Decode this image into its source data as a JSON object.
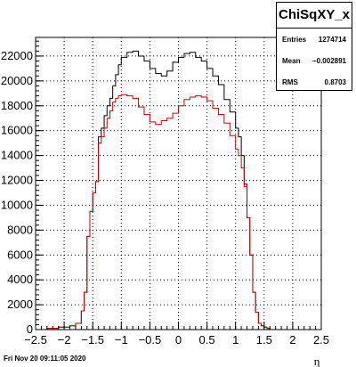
{
  "stats": {
    "title": "ChiSqXY_x",
    "rows": [
      {
        "key": "Entries",
        "value": "1274714"
      },
      {
        "key": "Mean",
        "value": "−0.002891"
      },
      {
        "key": "RMS",
        "value": "0.8703"
      }
    ]
  },
  "footer": {
    "date": "Fri Nov 20 09:11:05 2020"
  },
  "chart_data": {
    "type": "histogram",
    "title": "",
    "xlabel": "η",
    "ylabel": "",
    "xlim": [
      -2.5,
      2.5
    ],
    "ylim": [
      0,
      23500
    ],
    "x_ticks": [
      -2.5,
      -2,
      -1.5,
      -1,
      -0.5,
      0,
      0.5,
      1,
      1.5,
      2,
      2.5
    ],
    "x_tick_labels": [
      "−2.5",
      "−2",
      "−1.5",
      "−1",
      "−0.5",
      "0",
      "0.5",
      "1",
      "1.5",
      "2",
      "2.5"
    ],
    "y_ticks": [
      0,
      2000,
      4000,
      6000,
      8000,
      10000,
      12000,
      14000,
      16000,
      18000,
      20000,
      22000
    ],
    "y_tick_labels": [
      "0",
      "2000",
      "4000",
      "6000",
      "8000",
      "10000",
      "12000",
      "14000",
      "16000",
      "18000",
      "20000",
      "22000"
    ],
    "grid": true,
    "colors": {
      "black_series": "#000000",
      "red_series": "#cc0000"
    },
    "bin_edges_x": [
      -2.5,
      -2.3,
      -2.1,
      -1.9,
      -1.8,
      -1.7,
      -1.65,
      -1.6,
      -1.55,
      -1.5,
      -1.45,
      -1.4,
      -1.35,
      -1.3,
      -1.25,
      -1.2,
      -1.15,
      -1.1,
      -1.05,
      -1.0,
      -0.9,
      -0.8,
      -0.7,
      -0.6,
      -0.5,
      -0.4,
      -0.3,
      -0.2,
      -0.1,
      0.0,
      0.1,
      0.2,
      0.3,
      0.4,
      0.5,
      0.6,
      0.7,
      0.8,
      0.9,
      1.0,
      1.05,
      1.1,
      1.15,
      1.2,
      1.25,
      1.3,
      1.35,
      1.4,
      1.45,
      1.5,
      1.55,
      1.6,
      1.65,
      1.7,
      1.8,
      1.9,
      2.1,
      2.3,
      2.5
    ],
    "series": [
      {
        "color": "#000000",
        "values": [
          0,
          100,
          200,
          300,
          500,
          1500,
          3000,
          7500,
          9500,
          11000,
          11900,
          15500,
          16200,
          17200,
          18000,
          18600,
          19600,
          20500,
          21300,
          21900,
          22300,
          22400,
          22000,
          21600,
          21000,
          20600,
          20400,
          20800,
          21500,
          21900,
          22200,
          22300,
          21900,
          21600,
          21000,
          20400,
          19700,
          18500,
          17500,
          16200,
          15500,
          14000,
          11700,
          9000,
          6000,
          3000,
          1400,
          500,
          300,
          200,
          100,
          0,
          0,
          0,
          0,
          0,
          0,
          0
        ]
      },
      {
        "color": "#cc0000",
        "values": [
          0,
          100,
          200,
          300,
          500,
          1500,
          3000,
          7500,
          9500,
          11000,
          11900,
          15000,
          15500,
          16200,
          17000,
          17600,
          18300,
          18600,
          18800,
          18900,
          18800,
          18600,
          17900,
          17300,
          16700,
          16500,
          16800,
          17000,
          17400,
          18000,
          18500,
          18700,
          18800,
          18700,
          18400,
          17800,
          17300,
          16600,
          15600,
          14500,
          14000,
          13000,
          11500,
          9000,
          6000,
          3000,
          1400,
          500,
          300,
          200,
          100,
          0,
          0,
          0,
          0,
          0,
          0,
          0
        ]
      }
    ]
  }
}
